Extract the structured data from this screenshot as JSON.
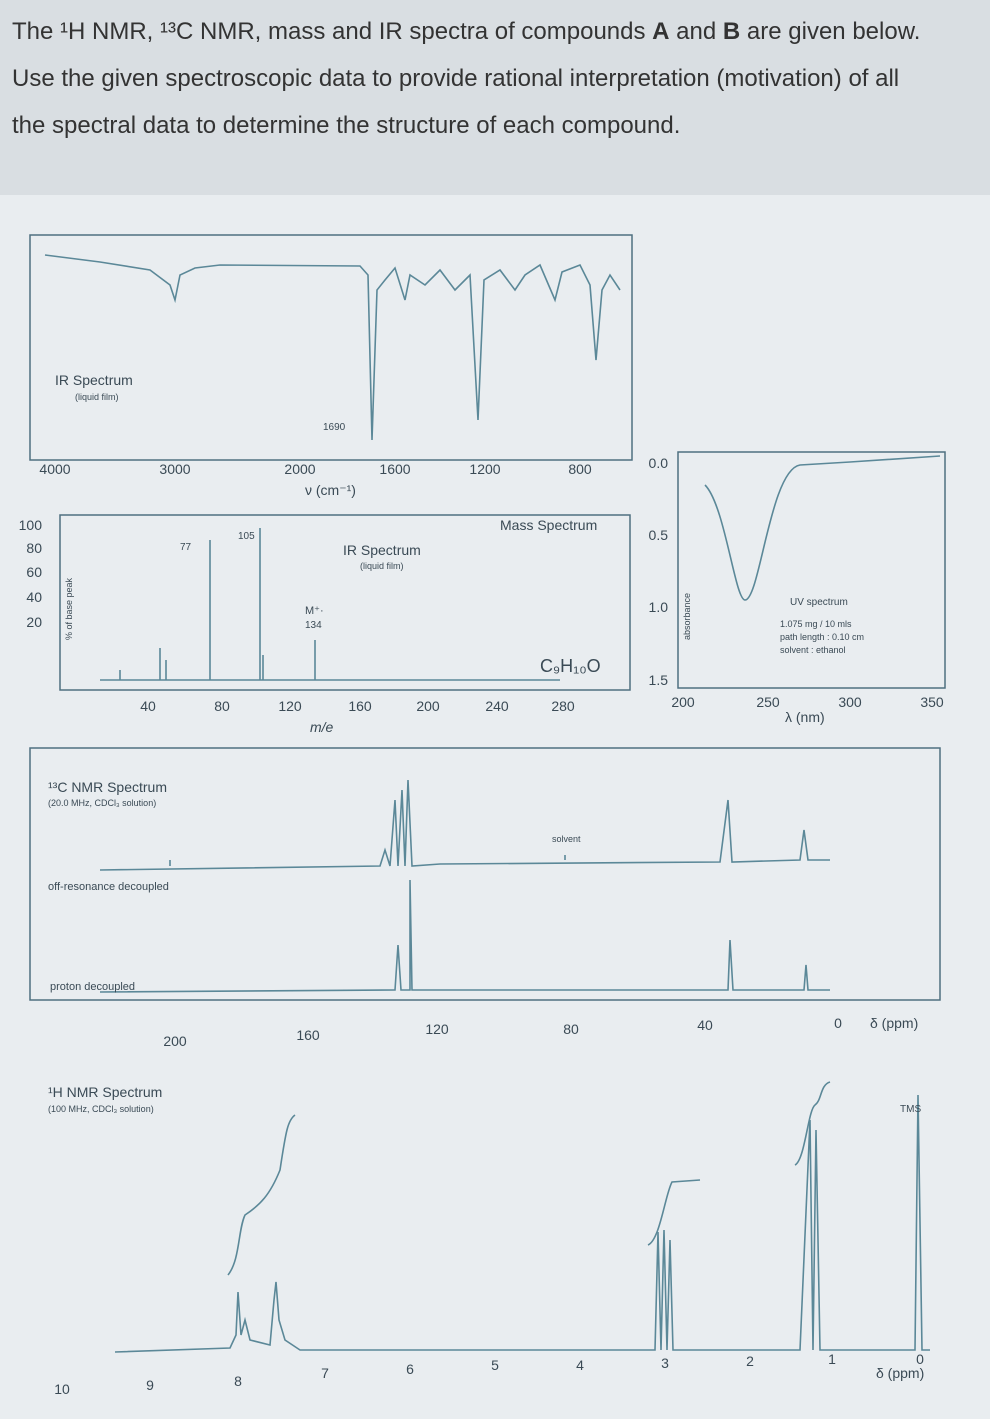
{
  "question": [
    "The ¹H NMR, ¹³C NMR, mass and IR spectra of compounds ",
    "A",
    " and ",
    "B",
    " are given below. Use the given spectroscopic data to provide rational interpretation (motivation) of all the spectral data to determine the structure of each compound."
  ],
  "ir": {
    "title": "IR Spectrum",
    "subtitle": "(liquid film)",
    "peak_label": "1690",
    "x_ticks": [
      "4000",
      "3000",
      "2000",
      "1600",
      "1200",
      "800"
    ],
    "x_label": "ν (cm⁻¹)"
  },
  "mass": {
    "title": "Mass Spectrum",
    "overlay_title": "IR Spectrum",
    "overlay_subtitle": "(liquid film)",
    "y_label": "% of base peak",
    "y_ticks": [
      "100",
      "80",
      "60",
      "40",
      "20"
    ],
    "x_ticks": [
      "40",
      "80",
      "120",
      "160",
      "200",
      "240",
      "280"
    ],
    "x_label": "m/e",
    "peak_labels": [
      "77",
      "105"
    ],
    "molecular_ion": "M⁺·",
    "molecular_ion_mz": "134",
    "formula": "C₉H₁₀O"
  },
  "uv": {
    "title": "UV spectrum",
    "y_label": "absorbance",
    "y_ticks": [
      "0.0",
      "0.5",
      "1.0",
      "1.5"
    ],
    "x_ticks": [
      "200",
      "250",
      "300",
      "350"
    ],
    "x_label": "λ (nm)",
    "notes": [
      "1.075 mg / 10 mls",
      "path length : 0.10 cm",
      "solvent : ethanol"
    ]
  },
  "c13": {
    "title": "¹³C NMR Spectrum",
    "subtitle": "(20.0 MHz, CDCl₃ solution)",
    "off_resonance": "off-resonance decoupled",
    "proton_decoupled": "proton decoupled",
    "solvent": "solvent",
    "x_ticks": [
      "200",
      "160",
      "120",
      "80",
      "40",
      "0"
    ],
    "x_label": "δ (ppm)"
  },
  "h1": {
    "title": "¹H NMR Spectrum",
    "subtitle": "(100 MHz, CDCl₃ solution)",
    "tms": "TMS",
    "x_ticks": [
      "10",
      "9",
      "8",
      "7",
      "6",
      "5",
      "4",
      "3",
      "2",
      "1",
      "0"
    ],
    "x_label": "δ (ppm)"
  }
}
